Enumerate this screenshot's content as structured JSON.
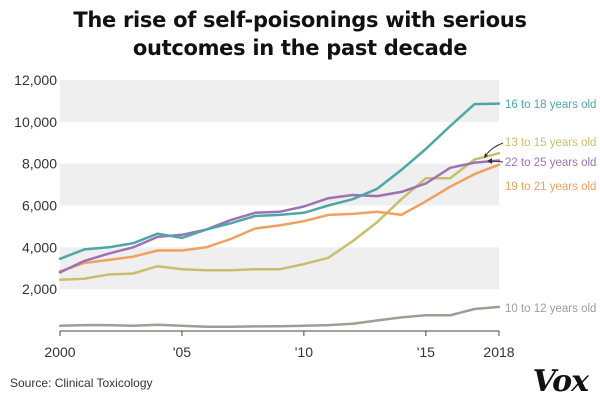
{
  "title_lines": [
    "The rise of self-poisonings with serious",
    "outcomes in the past decade"
  ],
  "source": "Source: Clinical Toxicology",
  "logo": "Vox",
  "chart_data": {
    "type": "line",
    "title": "The rise of self-poisonings with serious outcomes in the past decade",
    "x": [
      2000,
      2001,
      2002,
      2003,
      2004,
      2005,
      2006,
      2007,
      2008,
      2009,
      2010,
      2011,
      2012,
      2013,
      2014,
      2015,
      2016,
      2017,
      2018
    ],
    "xticks": [
      2000,
      2005,
      2010,
      2015,
      2018
    ],
    "xtick_labels": [
      "2000",
      "'05",
      "'10",
      "'15",
      "2018"
    ],
    "yticks": [
      2000,
      4000,
      6000,
      8000,
      10000,
      12000
    ],
    "ytick_labels": [
      "2,000",
      "4,000",
      "6,000",
      "8,000",
      "10,000",
      "12,000"
    ],
    "xlim": [
      2000,
      2018
    ],
    "ylim": [
      0,
      12000
    ],
    "grid": "alternating horizontal bands",
    "series": [
      {
        "name": "16 to 18 years old",
        "color": "#4fa6a9",
        "values": [
          3450,
          3900,
          4000,
          4200,
          4650,
          4450,
          4850,
          5150,
          5500,
          5550,
          5650,
          6000,
          6300,
          6800,
          7700,
          8700,
          9800,
          10850,
          10870
        ]
      },
      {
        "name": "13 to 15 years old",
        "color": "#c8bf6e",
        "values": [
          2450,
          2500,
          2700,
          2750,
          3100,
          2950,
          2900,
          2900,
          2950,
          2950,
          3200,
          3500,
          4300,
          5200,
          6300,
          7300,
          7300,
          8200,
          8500
        ]
      },
      {
        "name": "22 to 25 years old",
        "color": "#9d72b5",
        "values": [
          2800,
          3350,
          3700,
          4000,
          4500,
          4600,
          4850,
          5300,
          5650,
          5700,
          5950,
          6350,
          6500,
          6450,
          6650,
          7050,
          7800,
          8050,
          8150
        ]
      },
      {
        "name": "19 to 21 years old",
        "color": "#f0a060",
        "values": [
          2850,
          3250,
          3400,
          3550,
          3850,
          3850,
          4000,
          4400,
          4900,
          5050,
          5250,
          5550,
          5600,
          5700,
          5550,
          6200,
          6900,
          7500,
          7950
        ]
      },
      {
        "name": "10 to 12 years old",
        "color": "#a19d93",
        "values": [
          250,
          280,
          280,
          250,
          300,
          250,
          200,
          200,
          220,
          230,
          250,
          280,
          350,
          500,
          650,
          750,
          750,
          1050,
          1150
        ]
      }
    ]
  }
}
